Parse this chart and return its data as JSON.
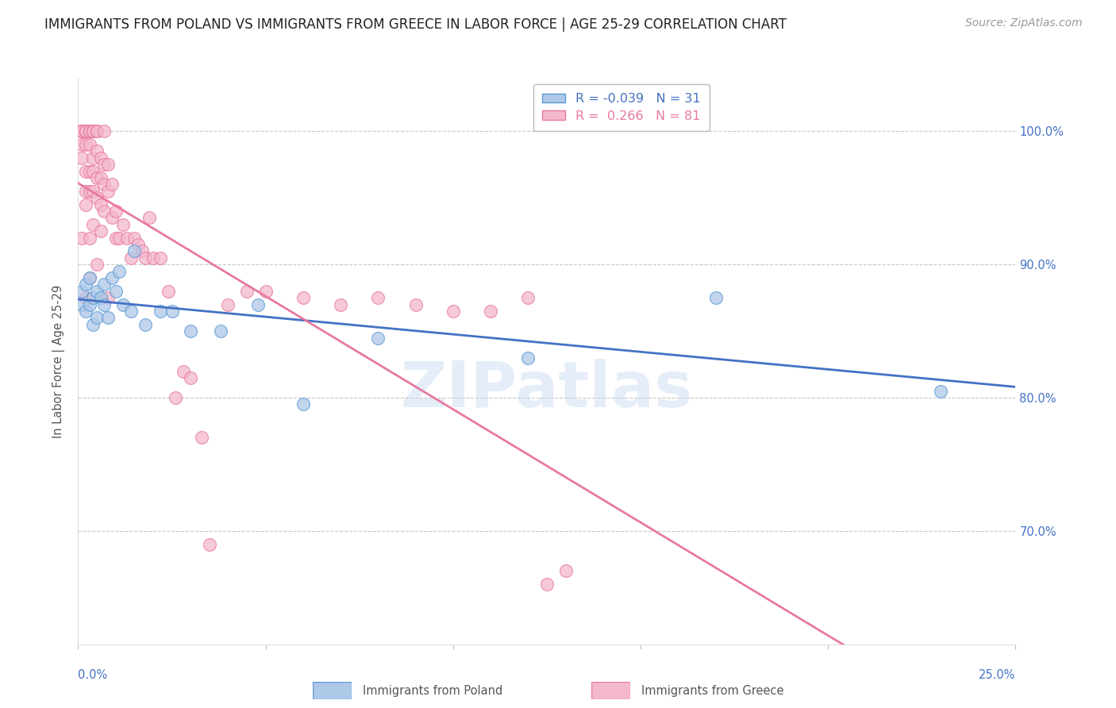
{
  "title": "IMMIGRANTS FROM POLAND VS IMMIGRANTS FROM GREECE IN LABOR FORCE | AGE 25-29 CORRELATION CHART",
  "source": "Source: ZipAtlas.com",
  "ylabel": "In Labor Force | Age 25-29",
  "ytick_values": [
    0.7,
    0.8,
    0.9,
    1.0
  ],
  "ytick_labels": [
    "70.0%",
    "80.0%",
    "90.0%",
    "100.0%"
  ],
  "xlim": [
    0.0,
    0.25
  ],
  "ylim": [
    0.615,
    1.04
  ],
  "poland_R": -0.039,
  "poland_N": 31,
  "greece_R": 0.266,
  "greece_N": 81,
  "poland_color": "#aec8e8",
  "greece_color": "#f4b8cc",
  "poland_edge_color": "#5b9bd5",
  "greece_edge_color": "#e879a0",
  "poland_line_color": "#4472c4",
  "greece_line_color": "#e879a0",
  "poland_x": [
    0.001,
    0.001,
    0.002,
    0.002,
    0.003,
    0.003,
    0.004,
    0.004,
    0.005,
    0.005,
    0.006,
    0.007,
    0.007,
    0.008,
    0.009,
    0.01,
    0.011,
    0.012,
    0.014,
    0.015,
    0.018,
    0.022,
    0.025,
    0.03,
    0.038,
    0.048,
    0.06,
    0.08,
    0.12,
    0.17,
    0.23
  ],
  "poland_y": [
    0.88,
    0.87,
    0.885,
    0.865,
    0.89,
    0.87,
    0.875,
    0.855,
    0.88,
    0.86,
    0.875,
    0.885,
    0.87,
    0.86,
    0.89,
    0.88,
    0.895,
    0.87,
    0.865,
    0.91,
    0.855,
    0.865,
    0.865,
    0.85,
    0.85,
    0.87,
    0.795,
    0.845,
    0.83,
    0.875,
    0.805
  ],
  "greece_x": [
    0.001,
    0.001,
    0.001,
    0.001,
    0.001,
    0.001,
    0.001,
    0.001,
    0.002,
    0.002,
    0.002,
    0.002,
    0.002,
    0.002,
    0.002,
    0.002,
    0.003,
    0.003,
    0.003,
    0.003,
    0.003,
    0.003,
    0.003,
    0.004,
    0.004,
    0.004,
    0.004,
    0.004,
    0.004,
    0.004,
    0.005,
    0.005,
    0.005,
    0.005,
    0.005,
    0.005,
    0.005,
    0.006,
    0.006,
    0.006,
    0.006,
    0.007,
    0.007,
    0.007,
    0.007,
    0.008,
    0.008,
    0.008,
    0.009,
    0.009,
    0.01,
    0.01,
    0.011,
    0.012,
    0.013,
    0.014,
    0.015,
    0.016,
    0.017,
    0.018,
    0.019,
    0.02,
    0.022,
    0.024,
    0.026,
    0.028,
    0.03,
    0.033,
    0.035,
    0.04,
    0.045,
    0.05,
    0.06,
    0.07,
    0.08,
    0.09,
    0.1,
    0.11,
    0.12,
    0.125,
    0.13
  ],
  "greece_y": [
    1.0,
    1.0,
    1.0,
    1.0,
    1.0,
    0.99,
    0.98,
    0.92,
    1.0,
    1.0,
    1.0,
    0.99,
    0.97,
    0.955,
    0.945,
    0.875,
    1.0,
    1.0,
    0.99,
    0.97,
    0.955,
    0.92,
    0.89,
    1.0,
    1.0,
    1.0,
    0.98,
    0.97,
    0.955,
    0.93,
    1.0,
    1.0,
    1.0,
    0.985,
    0.965,
    0.95,
    0.9,
    0.98,
    0.965,
    0.945,
    0.925,
    1.0,
    0.975,
    0.96,
    0.94,
    0.975,
    0.955,
    0.875,
    0.96,
    0.935,
    0.94,
    0.92,
    0.92,
    0.93,
    0.92,
    0.905,
    0.92,
    0.915,
    0.91,
    0.905,
    0.935,
    0.905,
    0.905,
    0.88,
    0.8,
    0.82,
    0.815,
    0.77,
    0.69,
    0.87,
    0.88,
    0.88,
    0.875,
    0.87,
    0.875,
    0.87,
    0.865,
    0.865,
    0.875,
    0.66,
    0.67
  ],
  "background_color": "#ffffff",
  "grid_color": "#c8c8c8",
  "axis_color": "#4472c4",
  "title_fontsize": 12,
  "source_fontsize": 10,
  "watermark_text": "ZIPatlas",
  "legend_label_poland": "Immigrants from Poland",
  "legend_label_greece": "Immigrants from Greece"
}
